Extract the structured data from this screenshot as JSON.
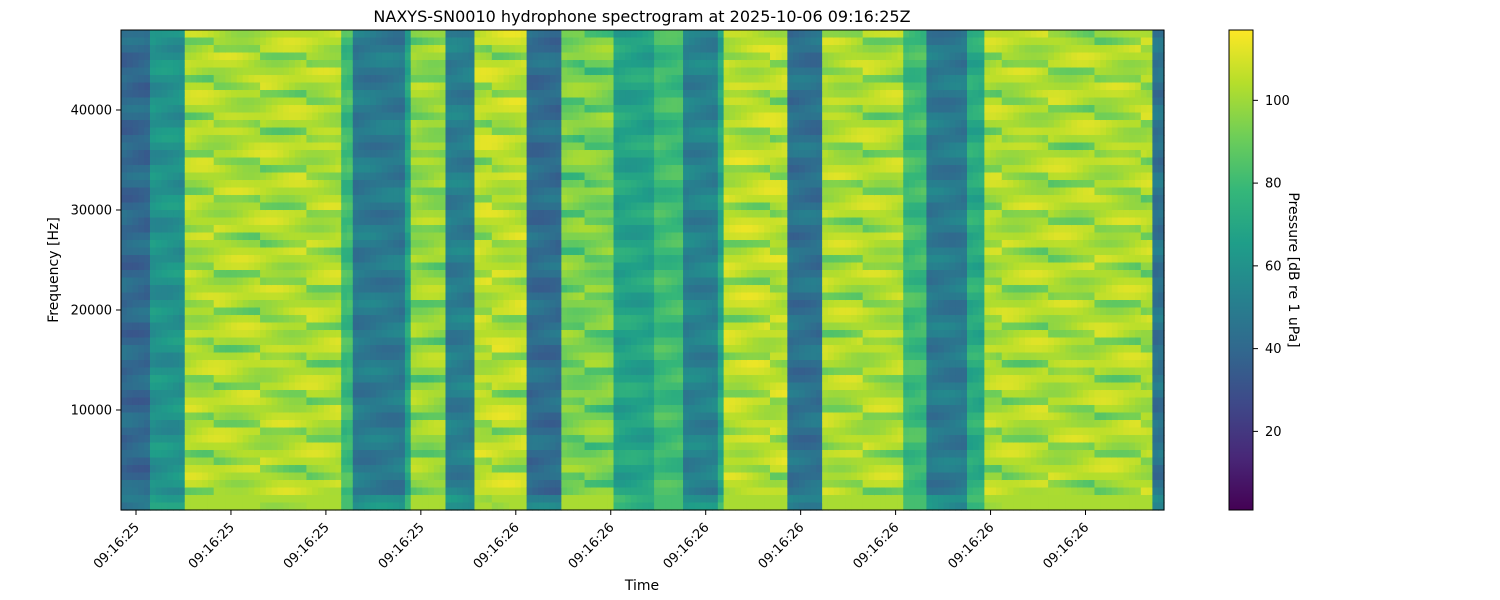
{
  "chart_data": {
    "type": "heatmap",
    "title": "NAXYS-SN0010 hydrophone spectrogram at 2025-10-06 09:16:25Z",
    "xlabel": "Time",
    "ylabel": "Frequency [Hz]",
    "colorbar_label": "Pressure [dB re 1 uPa]",
    "colormap": "viridis",
    "colormap_stops": [
      "#440154",
      "#482878",
      "#3e4989",
      "#31688e",
      "#26828e",
      "#1f9e89",
      "#35b779",
      "#6ece58",
      "#b5de2b",
      "#fde725"
    ],
    "ylim": [
      0,
      48000
    ],
    "clim": [
      1,
      117
    ],
    "x_tick_labels": [
      "09:16:25",
      "09:16:25",
      "09:16:25",
      "09:16:25",
      "09:16:26",
      "09:16:26",
      "09:16:26",
      "09:16:26",
      "09:16:26",
      "09:16:26",
      "09:16:26"
    ],
    "y_ticks": [
      10000,
      20000,
      30000,
      40000
    ],
    "colorbar_ticks": [
      20,
      40,
      60,
      80,
      100
    ],
    "time_bands": [
      {
        "from": 0.0,
        "to": 0.03,
        "level": 40
      },
      {
        "from": 0.03,
        "to": 0.06,
        "level": 60
      },
      {
        "from": 0.06,
        "to": 0.21,
        "level": 104
      },
      {
        "from": 0.21,
        "to": 0.22,
        "level": 80
      },
      {
        "from": 0.22,
        "to": 0.27,
        "level": 48
      },
      {
        "from": 0.27,
        "to": 0.28,
        "level": 68
      },
      {
        "from": 0.28,
        "to": 0.31,
        "level": 100
      },
      {
        "from": 0.31,
        "to": 0.34,
        "level": 50
      },
      {
        "from": 0.34,
        "to": 0.39,
        "level": 106
      },
      {
        "from": 0.39,
        "to": 0.42,
        "level": 42
      },
      {
        "from": 0.42,
        "to": 0.47,
        "level": 95
      },
      {
        "from": 0.47,
        "to": 0.51,
        "level": 68
      },
      {
        "from": 0.51,
        "to": 0.54,
        "level": 80
      },
      {
        "from": 0.54,
        "to": 0.57,
        "level": 52
      },
      {
        "from": 0.57,
        "to": 0.58,
        "level": 70
      },
      {
        "from": 0.58,
        "to": 0.64,
        "level": 106
      },
      {
        "from": 0.64,
        "to": 0.67,
        "level": 44
      },
      {
        "from": 0.67,
        "to": 0.75,
        "level": 104
      },
      {
        "from": 0.75,
        "to": 0.77,
        "level": 80
      },
      {
        "from": 0.77,
        "to": 0.81,
        "level": 48
      },
      {
        "from": 0.81,
        "to": 0.83,
        "level": 72
      },
      {
        "from": 0.83,
        "to": 0.99,
        "level": 104
      },
      {
        "from": 0.99,
        "to": 1.0,
        "level": 45
      }
    ]
  }
}
